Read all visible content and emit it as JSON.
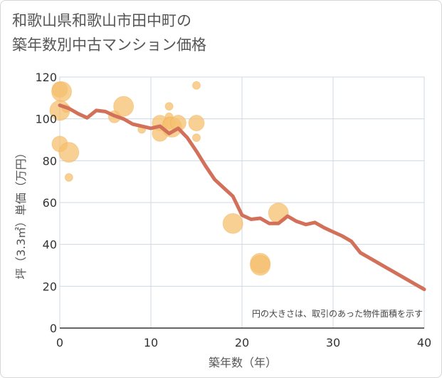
{
  "title_lines": [
    "和歌山県和歌山市田中町の",
    "築年数別中古マンション価格"
  ],
  "chart_data": {
    "type": "scatter",
    "title": "和歌山県和歌山市田中町の築年数別中古マンション価格",
    "xlabel": "築年数（年）",
    "ylabel": "坪（3.3㎡）単価（万円）",
    "xlim": [
      0,
      40
    ],
    "ylim": [
      0,
      120
    ],
    "x_ticks": [
      0,
      10,
      20,
      30,
      40
    ],
    "y_ticks": [
      0,
      20,
      40,
      60,
      80,
      100,
      120
    ],
    "grid": true,
    "annotation": "円の大きさは、取引のあった物件面積を示す",
    "bubble_color": "#f5c06f",
    "line_color": "#d3705a",
    "bubbles": [
      {
        "x": 0,
        "y": 114,
        "size": 3
      },
      {
        "x": 0.2,
        "y": 113,
        "size": 4
      },
      {
        "x": 0,
        "y": 104,
        "size": 4
      },
      {
        "x": 0.7,
        "y": 105,
        "size": 1
      },
      {
        "x": 0,
        "y": 88,
        "size": 3
      },
      {
        "x": 1,
        "y": 84,
        "size": 4
      },
      {
        "x": 1,
        "y": 72,
        "size": 1
      },
      {
        "x": 6,
        "y": 101,
        "size": 2
      },
      {
        "x": 7,
        "y": 106,
        "size": 4
      },
      {
        "x": 9,
        "y": 95,
        "size": 1
      },
      {
        "x": 11,
        "y": 98,
        "size": 3
      },
      {
        "x": 11,
        "y": 93,
        "size": 3
      },
      {
        "x": 12,
        "y": 106,
        "size": 1
      },
      {
        "x": 12,
        "y": 101,
        "size": 1
      },
      {
        "x": 12,
        "y": 98,
        "size": 2
      },
      {
        "x": 12.3,
        "y": 96,
        "size": 4
      },
      {
        "x": 13,
        "y": 98,
        "size": 3
      },
      {
        "x": 15,
        "y": 116,
        "size": 1
      },
      {
        "x": 15,
        "y": 98,
        "size": 3
      },
      {
        "x": 15,
        "y": 91,
        "size": 1
      },
      {
        "x": 19,
        "y": 50,
        "size": 4
      },
      {
        "x": 22,
        "y": 31,
        "size": 4
      },
      {
        "x": 22,
        "y": 30,
        "size": 4
      },
      {
        "x": 24,
        "y": 55,
        "size": 4
      }
    ],
    "trend": {
      "x": [
        0,
        1,
        2,
        3,
        4,
        5,
        6,
        7,
        8,
        9,
        10,
        11,
        12,
        13,
        14,
        15,
        16,
        17,
        18,
        19,
        20,
        21,
        22,
        23,
        24,
        25,
        26,
        27,
        28,
        29,
        30,
        31,
        32,
        33,
        34,
        35,
        36,
        37,
        38,
        39,
        40
      ],
      "y": [
        106.5,
        105,
        102.5,
        100.5,
        104,
        103.5,
        101.5,
        100,
        97.5,
        96.5,
        95.5,
        96.5,
        93,
        95.5,
        91,
        84.5,
        77.5,
        71,
        67,
        63,
        54,
        52,
        52.5,
        50,
        50,
        53.5,
        51,
        49.5,
        50.5,
        48,
        46,
        44,
        41.5,
        36,
        33.5,
        31,
        28.5,
        26,
        23.5,
        21,
        18.5
      ]
    }
  }
}
